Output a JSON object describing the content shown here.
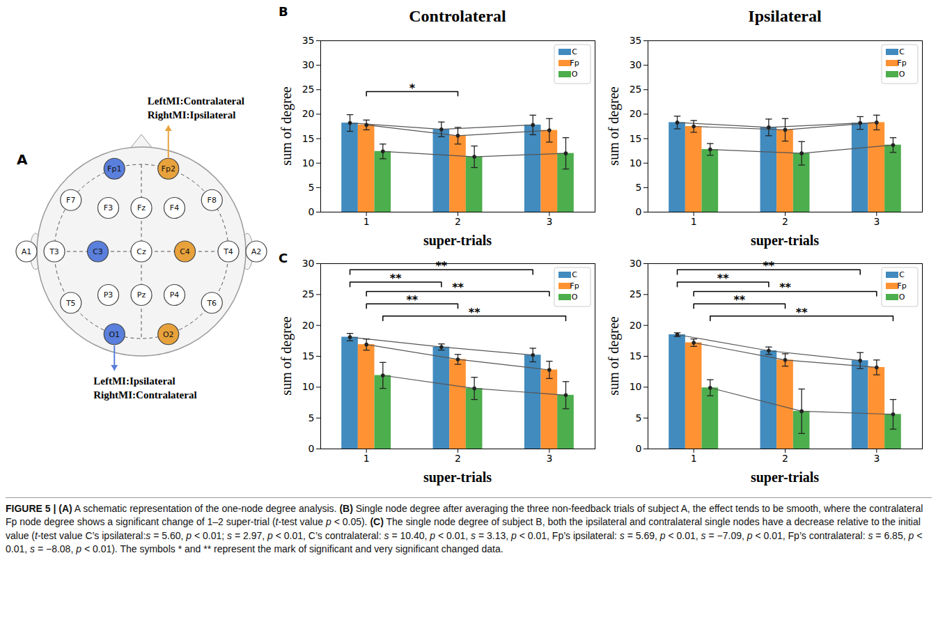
{
  "diagram": {
    "panel": "A",
    "electrodes": [
      {
        "label": "Fp1",
        "color": "#5a7fdc"
      },
      {
        "label": "Fp2",
        "color": "#e8a23c"
      },
      {
        "label": "F7"
      },
      {
        "label": "F3"
      },
      {
        "label": "Fz"
      },
      {
        "label": "F4"
      },
      {
        "label": "F8"
      },
      {
        "label": "A1"
      },
      {
        "label": "T3"
      },
      {
        "label": "C3",
        "color": "#5a7fdc"
      },
      {
        "label": "Cz"
      },
      {
        "label": "C4",
        "color": "#e8a23c"
      },
      {
        "label": "T4"
      },
      {
        "label": "A2"
      },
      {
        "label": "T5"
      },
      {
        "label": "P3"
      },
      {
        "label": "Pz"
      },
      {
        "label": "P4"
      },
      {
        "label": "T6"
      },
      {
        "label": "O1",
        "color": "#5a7fdc"
      },
      {
        "label": "O2",
        "color": "#e8a23c"
      }
    ],
    "annotations": [
      {
        "electrode": "Fp2",
        "color": "#e8a23c",
        "lines": [
          "LeftMI:Contralateral",
          "RightMI:Ipsilateral"
        ]
      },
      {
        "electrode": "O1",
        "color": "#5a7fdc",
        "lines": [
          "LeftMI:Ipsilateral",
          "RightMI:Contralateral"
        ]
      }
    ]
  },
  "chart_data": [
    {
      "type": "bar",
      "panel": "B",
      "title": "Controlateral",
      "xlabel": "super-trials",
      "ylabel": "sum of degree",
      "categories": [
        "1",
        "2",
        "3"
      ],
      "ylim": [
        0,
        35
      ],
      "yticks": [
        0,
        5,
        10,
        15,
        20,
        25,
        30,
        35
      ],
      "legend": "top-right",
      "series": [
        {
          "name": "C",
          "color": "#418bbf",
          "values": [
            18.2,
            16.9,
            17.8
          ],
          "errors": [
            1.7,
            1.5,
            2.0
          ]
        },
        {
          "name": "Fp",
          "color": "#ff9232",
          "values": [
            17.8,
            15.6,
            16.7
          ],
          "errors": [
            1.0,
            1.7,
            2.4
          ]
        },
        {
          "name": "O",
          "color": "#4cae4c",
          "values": [
            12.4,
            11.3,
            12.0
          ],
          "errors": [
            1.5,
            2.2,
            3.2
          ]
        }
      ],
      "brackets": [
        {
          "from": "1",
          "to": "2",
          "series": "Fp",
          "y": 24.6,
          "label": "*"
        }
      ]
    },
    {
      "type": "bar",
      "title": "Ipsilateral",
      "xlabel": "super-trials",
      "ylabel": "sum of degree",
      "categories": [
        "1",
        "2",
        "3"
      ],
      "ylim": [
        0,
        35
      ],
      "yticks": [
        0,
        5,
        10,
        15,
        20,
        25,
        30,
        35
      ],
      "legend": "top-right",
      "series": [
        {
          "name": "C",
          "color": "#418bbf",
          "values": [
            18.3,
            17.3,
            18.2
          ],
          "errors": [
            1.3,
            1.7,
            1.3
          ]
        },
        {
          "name": "Fp",
          "color": "#ff9232",
          "values": [
            17.5,
            16.8,
            18.3
          ],
          "errors": [
            1.2,
            2.3,
            1.5
          ]
        },
        {
          "name": "O",
          "color": "#4cae4c",
          "values": [
            12.8,
            12.0,
            13.7
          ],
          "errors": [
            1.2,
            2.4,
            1.5
          ]
        }
      ],
      "brackets": []
    },
    {
      "type": "bar",
      "panel": "C",
      "xlabel": "super-trials",
      "ylabel": "sum of degree",
      "categories": [
        "1",
        "2",
        "3"
      ],
      "ylim": [
        0,
        30
      ],
      "yticks": [
        0,
        5,
        10,
        15,
        20,
        25,
        30
      ],
      "legend": "top-right",
      "series": [
        {
          "name": "C",
          "color": "#418bbf",
          "values": [
            18.1,
            16.5,
            15.2
          ],
          "errors": [
            0.6,
            0.5,
            1.1
          ]
        },
        {
          "name": "Fp",
          "color": "#ff9232",
          "values": [
            16.9,
            14.5,
            12.8
          ],
          "errors": [
            0.9,
            0.8,
            1.4
          ]
        },
        {
          "name": "O",
          "color": "#4cae4c",
          "values": [
            11.9,
            9.8,
            8.7
          ],
          "errors": [
            2.1,
            1.8,
            2.2
          ]
        }
      ],
      "brackets": [
        {
          "from": "1",
          "to": "3",
          "series": "C",
          "y": 29,
          "label": "**"
        },
        {
          "from": "1",
          "to": "2",
          "series": "C",
          "y": 27,
          "label": "**"
        },
        {
          "from": "1",
          "to": "3",
          "series": "Fp",
          "y": 25.5,
          "label": "**"
        },
        {
          "from": "1",
          "to": "2",
          "series": "Fp",
          "y": 23.5,
          "label": "**"
        },
        {
          "from": "1",
          "to": "3",
          "series": "O",
          "y": 21.5,
          "label": "**"
        }
      ]
    },
    {
      "type": "bar",
      "xlabel": "super-trials",
      "ylabel": "sum of degree",
      "categories": [
        "1",
        "2",
        "3"
      ],
      "ylim": [
        0,
        30
      ],
      "yticks": [
        0,
        5,
        10,
        15,
        20,
        25,
        30
      ],
      "legend": "top-right",
      "series": [
        {
          "name": "C",
          "color": "#418bbf",
          "values": [
            18.5,
            15.9,
            14.3
          ],
          "errors": [
            0.3,
            0.6,
            1.3
          ]
        },
        {
          "name": "Fp",
          "color": "#ff9232",
          "values": [
            17.2,
            14.4,
            13.2
          ],
          "errors": [
            0.6,
            1.0,
            1.2
          ]
        },
        {
          "name": "O",
          "color": "#4cae4c",
          "values": [
            9.9,
            6.1,
            5.6
          ],
          "errors": [
            1.3,
            3.6,
            2.4
          ]
        }
      ],
      "brackets": [
        {
          "from": "1",
          "to": "3",
          "series": "C",
          "y": 29,
          "label": "**"
        },
        {
          "from": "1",
          "to": "2",
          "series": "C",
          "y": 27,
          "label": "**"
        },
        {
          "from": "1",
          "to": "3",
          "series": "Fp",
          "y": 25.5,
          "label": "**"
        },
        {
          "from": "1",
          "to": "2",
          "series": "Fp",
          "y": 23.5,
          "label": "**"
        },
        {
          "from": "1",
          "to": "3",
          "series": "O",
          "y": 21.5,
          "label": "**"
        }
      ]
    }
  ],
  "caption": [
    {
      "b": "FIGURE 5 | (A)"
    },
    " A schematic representation of the one-node degree analysis. ",
    {
      "b": "(B)"
    },
    " Single node degree after averaging the three non-feedback trials of subject A, the effect tends to be smooth, where the contralateral Fp node degree shows a significant change of 1–2 super-trial (",
    {
      "i": "t"
    },
    "-test value ",
    {
      "i": "p"
    },
    " < 0.05). ",
    {
      "b": "(C)"
    },
    " The single node degree of subject B, both the ipsilateral and contralateral single nodes have a decrease relative to the initial value (",
    {
      "i": "t"
    },
    "-test value C’s ipsilateral:",
    {
      "i": "s"
    },
    " = 5.60, ",
    {
      "i": "p"
    },
    " < 0.01; ",
    {
      "i": "s"
    },
    " = 2.97, ",
    {
      "i": "p"
    },
    " < 0.01, C’s contralateral: ",
    {
      "i": "s"
    },
    " = 10.40, ",
    {
      "i": "p"
    },
    " < 0.01, ",
    {
      "i": "s"
    },
    " = 3.13, ",
    {
      "i": "p"
    },
    " < 0.01, Fp’s ipsilateral: ",
    {
      "i": "s"
    },
    " = 5.69, ",
    {
      "i": "p"
    },
    " < 0.01, ",
    {
      "i": "s"
    },
    " = −7.09, ",
    {
      "i": "p"
    },
    " < 0.01, Fp’s contralateral: ",
    {
      "i": "s"
    },
    " = 6.85, ",
    {
      "i": "p"
    },
    " < 0.01, ",
    {
      "i": "s"
    },
    " = −8.08, ",
    {
      "i": "p"
    },
    " < 0.01). The symbols * and ** represent the mark of significant and very significant changed data."
  ]
}
